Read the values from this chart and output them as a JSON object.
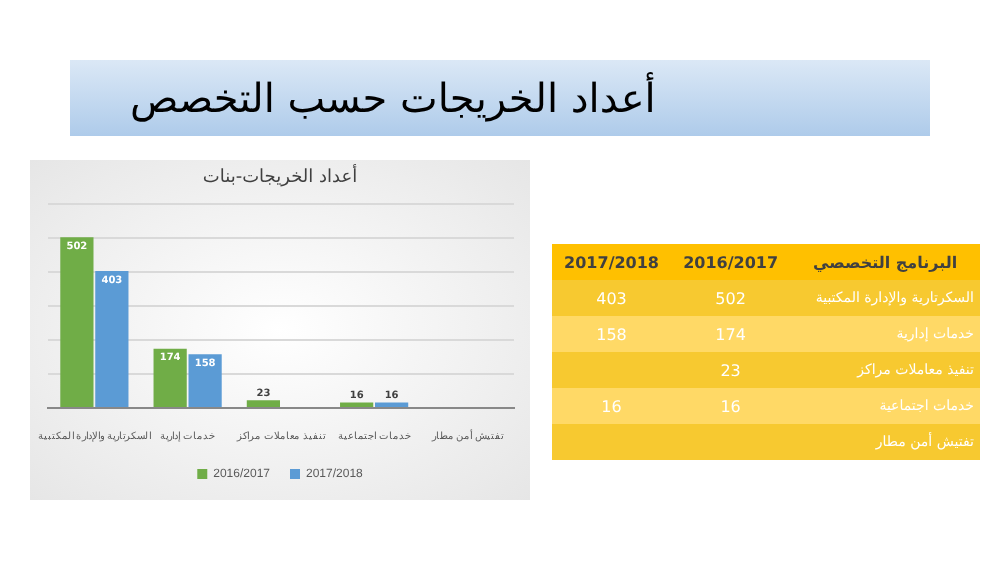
{
  "chart_data": [
    {
      "type": "bar",
      "title": "أعداد الخريجات حسب التخصص",
      "subtitle": "أعداد الخريجات-بنات",
      "categories": [
        "السكرتارية والإدارة المكتبية",
        "خدمات إدارية",
        "تنفيذ معاملات مراكز",
        "خدمات اجتماعية",
        "تفتيش أمن مطار"
      ],
      "series": [
        {
          "name": "2016/2017",
          "color": "#70ad47",
          "values": [
            502,
            174,
            23,
            16,
            null
          ]
        },
        {
          "name": "2017/2018",
          "color": "#5b9bd5",
          "values": [
            403,
            158,
            null,
            16,
            null
          ]
        }
      ],
      "ylim": [
        0,
        600
      ],
      "yticks": [
        {
          "value": 0,
          "label": null
        },
        {
          "value": 100,
          "label": null
        },
        {
          "value": 200,
          "label": null
        },
        {
          "value": 300,
          "label": null
        },
        {
          "value": 400,
          "label": null
        },
        {
          "value": 500,
          "label": null
        },
        {
          "value": 600,
          "label": null
        }
      ],
      "tick_labels": "x",
      "grid": "y",
      "legend": "bottom",
      "data_labels": true
    },
    {
      "type": "other",
      "annotations": [
        "البرنامج التخصصي",
        "2016/2017",
        "2017/2018",
        "السكرتارية والإدارة المكتبية",
        "502",
        "403",
        "خدمات إدارية",
        "174",
        "158",
        "تنفيذ معاملات مراكز",
        "23",
        null,
        "خدمات اجتماعية",
        "16",
        "16",
        "تفتيش أمن مطار",
        null,
        null
      ]
    }
  ]
}
